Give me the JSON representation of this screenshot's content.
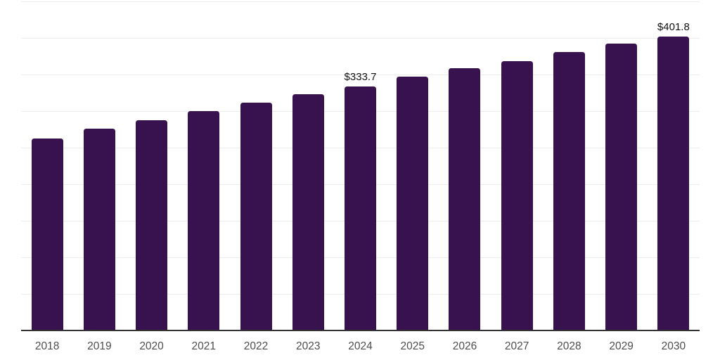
{
  "chart_data": {
    "type": "bar",
    "categories": [
      "2018",
      "2019",
      "2020",
      "2021",
      "2022",
      "2023",
      "2024",
      "2025",
      "2026",
      "2027",
      "2028",
      "2029",
      "2030"
    ],
    "values": [
      262.7,
      275.9,
      287.4,
      299.9,
      311.9,
      322.9,
      333.7,
      346.9,
      359.1,
      368.7,
      380.8,
      392.4,
      401.8
    ],
    "data_labels": [
      {
        "index": 6,
        "text": "$333.7"
      },
      {
        "index": 12,
        "text": "$401.8"
      }
    ],
    "title": "",
    "xlabel": "",
    "ylabel": "",
    "ylim": [
      0,
      450
    ],
    "gridline_step": 50,
    "grid": true,
    "legend": false,
    "y_tick_labels_visible": false,
    "colors": {
      "bar": "#38114f",
      "axis_line": "#333333",
      "gridline": "#ededed",
      "tick_label": "#4d4d4d",
      "data_label": "#111111",
      "background": "#ffffff"
    }
  }
}
